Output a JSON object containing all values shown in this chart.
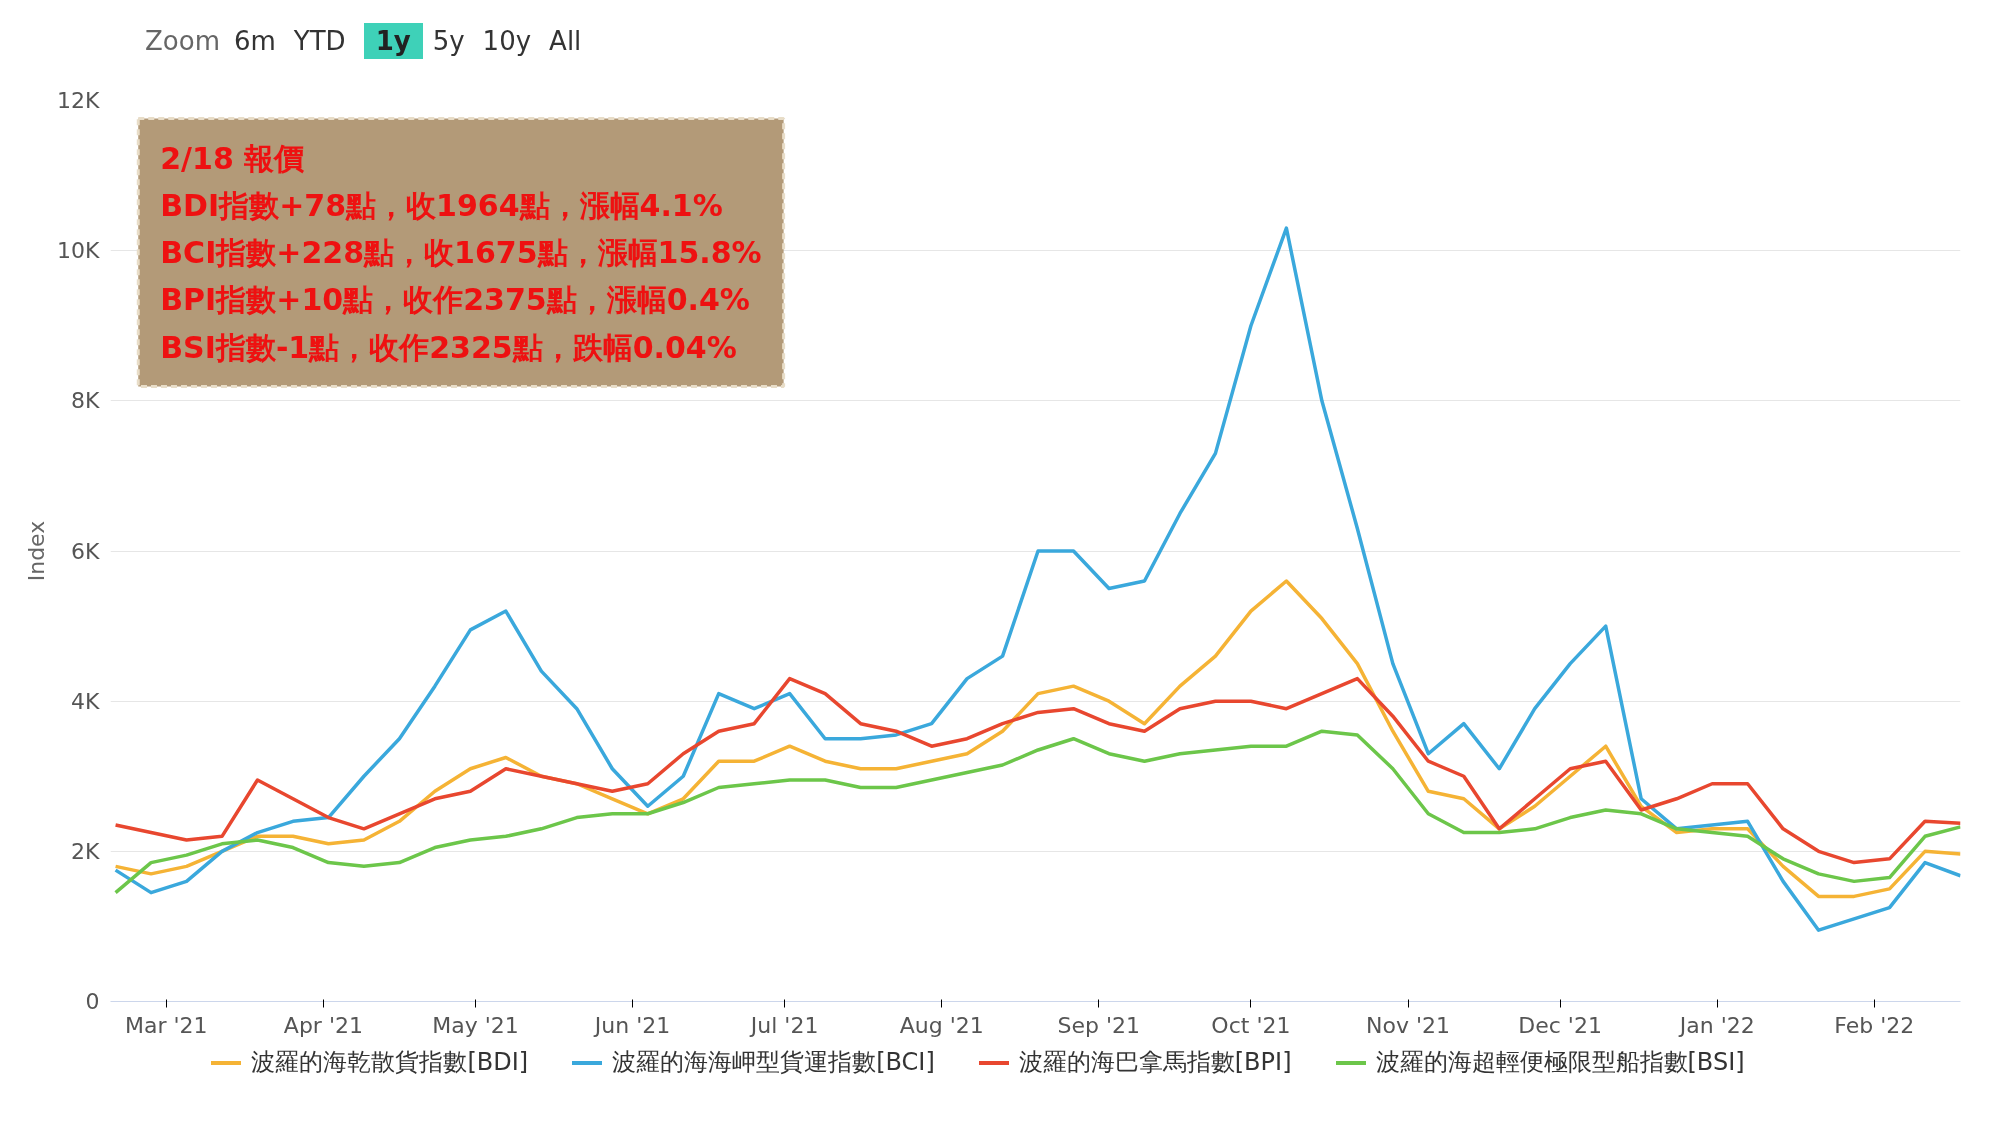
{
  "chart_data": {
    "type": "line",
    "ylabel": "Index",
    "x": [
      "2021-02-19",
      "2021-02-26",
      "2021-03-05",
      "2021-03-12",
      "2021-03-19",
      "2021-03-26",
      "2021-04-02",
      "2021-04-09",
      "2021-04-16",
      "2021-04-23",
      "2021-04-30",
      "2021-05-07",
      "2021-05-14",
      "2021-05-21",
      "2021-05-28",
      "2021-06-04",
      "2021-06-11",
      "2021-06-18",
      "2021-06-25",
      "2021-07-02",
      "2021-07-09",
      "2021-07-16",
      "2021-07-23",
      "2021-07-30",
      "2021-08-06",
      "2021-08-13",
      "2021-08-20",
      "2021-08-27",
      "2021-09-03",
      "2021-09-10",
      "2021-09-17",
      "2021-09-24",
      "2021-10-01",
      "2021-10-08",
      "2021-10-15",
      "2021-10-22",
      "2021-10-29",
      "2021-11-05",
      "2021-11-12",
      "2021-11-19",
      "2021-11-26",
      "2021-12-03",
      "2021-12-10",
      "2021-12-17",
      "2021-12-24",
      "2021-12-31",
      "2022-01-07",
      "2022-01-14",
      "2022-01-21",
      "2022-01-28",
      "2022-02-04",
      "2022-02-11",
      "2022-02-18"
    ],
    "series": [
      {
        "name": "波羅的海乾散貨指數[BDI]",
        "color": "#f5b335",
        "values": [
          1800,
          1700,
          1800,
          2000,
          2200,
          2200,
          2100,
          2150,
          2400,
          2800,
          3100,
          3250,
          3000,
          2900,
          2700,
          2500,
          2700,
          3200,
          3200,
          3400,
          3200,
          3100,
          3100,
          3200,
          3300,
          3600,
          4100,
          4200,
          4000,
          3700,
          4200,
          4600,
          5200,
          5600,
          5100,
          4500,
          3600,
          2800,
          2700,
          2300,
          2600,
          3000,
          3400,
          2600,
          2250,
          2300,
          2300,
          1800,
          1400,
          1400,
          1500,
          2000,
          1964
        ]
      },
      {
        "name": "波羅的海海岬型貨運指數[BCI]",
        "color": "#3aa8dc",
        "values": [
          1750,
          1450,
          1600,
          2000,
          2250,
          2400,
          2450,
          3000,
          3500,
          4200,
          4950,
          5200,
          4400,
          3900,
          3100,
          2600,
          3000,
          4100,
          3900,
          4100,
          3500,
          3500,
          3550,
          3700,
          4300,
          4600,
          6000,
          6000,
          5500,
          5600,
          6500,
          7300,
          9000,
          10300,
          8000,
          6300,
          4500,
          3300,
          3700,
          3100,
          3900,
          4500,
          5000,
          2700,
          2300,
          2350,
          2400,
          1600,
          950,
          1100,
          1250,
          1850,
          1675
        ]
      },
      {
        "name": "波羅的海巴拿馬指數[BPI]",
        "color": "#e8472f",
        "values": [
          2350,
          2250,
          2150,
          2200,
          2950,
          2700,
          2450,
          2300,
          2500,
          2700,
          2800,
          3100,
          3000,
          2900,
          2800,
          2900,
          3300,
          3600,
          3700,
          4300,
          4100,
          3700,
          3600,
          3400,
          3500,
          3700,
          3850,
          3900,
          3700,
          3600,
          3900,
          4000,
          4000,
          3900,
          4100,
          4300,
          3800,
          3200,
          3000,
          2300,
          2700,
          3100,
          3200,
          2550,
          2700,
          2900,
          2900,
          2300,
          2000,
          1850,
          1900,
          2400,
          2375
        ]
      },
      {
        "name": "波羅的海超輕便極限型船指數[BSI]",
        "color": "#6cc64a",
        "values": [
          1450,
          1850,
          1950,
          2100,
          2150,
          2050,
          1850,
          1800,
          1850,
          2050,
          2150,
          2200,
          2300,
          2450,
          2500,
          2500,
          2650,
          2850,
          2900,
          2950,
          2950,
          2850,
          2850,
          2950,
          3050,
          3150,
          3350,
          3500,
          3300,
          3200,
          3300,
          3350,
          3400,
          3400,
          3600,
          3550,
          3100,
          2500,
          2250,
          2250,
          2300,
          2450,
          2550,
          2500,
          2300,
          2250,
          2200,
          1900,
          1700,
          1600,
          1650,
          2200,
          2325
        ]
      }
    ],
    "xlim": [
      "2021-02-18",
      "2022-02-18"
    ],
    "xticks": [
      {
        "value": "2021-03-01",
        "label": "Mar '21"
      },
      {
        "value": "2021-04-01",
        "label": "Apr '21"
      },
      {
        "value": "2021-05-01",
        "label": "May '21"
      },
      {
        "value": "2021-06-01",
        "label": "Jun '21"
      },
      {
        "value": "2021-07-01",
        "label": "Jul '21"
      },
      {
        "value": "2021-08-01",
        "label": "Aug '21"
      },
      {
        "value": "2021-09-01",
        "label": "Sep '21"
      },
      {
        "value": "2021-10-01",
        "label": "Oct '21"
      },
      {
        "value": "2021-11-01",
        "label": "Nov '21"
      },
      {
        "value": "2021-12-01",
        "label": "Dec '21"
      },
      {
        "value": "2022-01-01",
        "label": "Jan '22"
      },
      {
        "value": "2022-02-01",
        "label": "Feb '22"
      }
    ],
    "ylim": [
      0,
      12000
    ],
    "yticks": [
      {
        "value": 0,
        "label": "0"
      },
      {
        "value": 2000,
        "label": "2K"
      },
      {
        "value": 4000,
        "label": "4K"
      },
      {
        "value": 6000,
        "label": "6K"
      },
      {
        "value": 8000,
        "label": "8K"
      },
      {
        "value": 10000,
        "label": "10K"
      },
      {
        "value": 12000,
        "label": "12K"
      }
    ],
    "grid": "y",
    "legend": "bottom",
    "marker": "none",
    "line_style": "solid",
    "annotations": [
      "Zoom",
      "6m",
      "YTD",
      "1y",
      "5y",
      "10y",
      "All",
      "2/18 報價",
      "BDI指數+78點，收1964點，漲幅4.1%",
      "BCI指數+228點，收1675點，漲幅15.8%",
      "BPI指數+10點，收作2375點，漲幅0.4%",
      "BSI指數-1點，收作2325點，跌幅0.04%"
    ]
  }
}
